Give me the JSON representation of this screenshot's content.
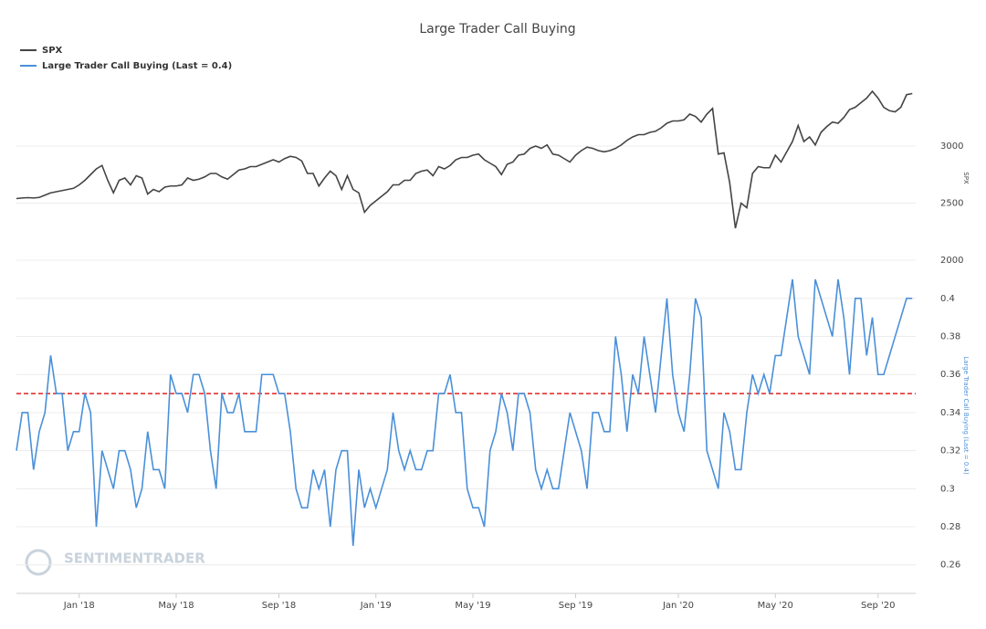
{
  "chart_data": {
    "type": "line",
    "title": "Large Trader Call Buying",
    "categories": [
      null,
      null,
      null,
      null,
      null,
      null,
      null,
      null,
      null,
      null,
      null,
      "Jan '18",
      null,
      null,
      null,
      null,
      null,
      null,
      null,
      null,
      null,
      null,
      null,
      null,
      null,
      null,
      null,
      null,
      "May '18",
      null,
      null,
      null,
      null,
      null,
      null,
      null,
      null,
      null,
      null,
      null,
      null,
      null,
      null,
      null,
      null,
      null,
      "Sep '18",
      null,
      null,
      null,
      null,
      null,
      null,
      null,
      null,
      null,
      null,
      null,
      null,
      null,
      null,
      null,
      null,
      "Jan '19",
      null,
      null,
      null,
      null,
      null,
      null,
      null,
      null,
      null,
      null,
      null,
      null,
      null,
      null,
      null,
      null,
      "May '19",
      null,
      null,
      null,
      null,
      null,
      null,
      null,
      null,
      null,
      null,
      null,
      null,
      null,
      null,
      null,
      null,
      null,
      "Sep '19",
      null,
      null,
      null,
      null,
      null,
      null,
      null,
      null,
      null,
      null,
      null,
      null,
      null,
      null,
      null,
      null,
      null,
      "Jan '20",
      null,
      null,
      null,
      null,
      null,
      null,
      null,
      null,
      null,
      null,
      null,
      null,
      null,
      null,
      null,
      null,
      "May '20",
      null,
      null,
      null,
      null,
      null,
      null,
      null,
      null,
      null,
      null,
      null,
      null,
      null,
      null,
      null,
      null,
      null,
      "Sep '20",
      null,
      null,
      null,
      null,
      null,
      null
    ],
    "series": [
      {
        "name": "SPX",
        "color": "#444444",
        "values": [
          2540,
          2545,
          2548,
          2545,
          2550,
          2570,
          2590,
          2600,
          2610,
          2620,
          2630,
          2660,
          2700,
          2750,
          2800,
          2830,
          2700,
          2590,
          2700,
          2720,
          2660,
          2740,
          2720,
          2580,
          2620,
          2600,
          2640,
          2650,
          2650,
          2660,
          2720,
          2700,
          2710,
          2730,
          2760,
          2760,
          2730,
          2710,
          2750,
          2790,
          2800,
          2820,
          2820,
          2840,
          2860,
          2880,
          2860,
          2890,
          2910,
          2900,
          2870,
          2760,
          2760,
          2650,
          2720,
          2780,
          2740,
          2620,
          2740,
          2620,
          2590,
          2420,
          2480,
          2520,
          2560,
          2600,
          2660,
          2660,
          2700,
          2700,
          2760,
          2780,
          2790,
          2740,
          2820,
          2800,
          2830,
          2880,
          2900,
          2900,
          2920,
          2930,
          2880,
          2850,
          2820,
          2750,
          2840,
          2860,
          2920,
          2930,
          2980,
          3000,
          2980,
          3010,
          2930,
          2920,
          2890,
          2860,
          2920,
          2960,
          2990,
          2980,
          2960,
          2950,
          2960,
          2980,
          3010,
          3050,
          3080,
          3100,
          3100,
          3120,
          3130,
          3160,
          3200,
          3220,
          3220,
          3230,
          3280,
          3260,
          3210,
          3280,
          3330,
          2930,
          2940,
          2680,
          2280,
          2500,
          2460,
          2760,
          2820,
          2810,
          2810,
          2920,
          2860,
          2950,
          3040,
          3180,
          3040,
          3080,
          3010,
          3120,
          3170,
          3210,
          3200,
          3250,
          3320,
          3340,
          3380,
          3420,
          3480,
          3420,
          3340,
          3310,
          3300,
          3340,
          3450,
          3460
        ]
      },
      {
        "name": "Large Trader Call Buying (Last = 0.4)",
        "color": "#4a90d9",
        "axis": "y2",
        "values": [
          0.32,
          0.34,
          0.34,
          0.31,
          0.33,
          0.34,
          0.37,
          0.35,
          0.35,
          0.32,
          0.33,
          0.33,
          0.35,
          0.34,
          0.28,
          0.32,
          0.31,
          0.3,
          0.32,
          0.32,
          0.31,
          0.29,
          0.3,
          0.33,
          0.31,
          0.31,
          0.3,
          0.36,
          0.35,
          0.35,
          0.34,
          0.36,
          0.36,
          0.35,
          0.32,
          0.3,
          0.35,
          0.34,
          0.34,
          0.35,
          0.33,
          0.33,
          0.33,
          0.36,
          0.36,
          0.36,
          0.35,
          0.35,
          0.33,
          0.3,
          0.29,
          0.29,
          0.31,
          0.3,
          0.31,
          0.28,
          0.31,
          0.32,
          0.32,
          0.27,
          0.31,
          0.29,
          0.3,
          0.29,
          0.3,
          0.31,
          0.34,
          0.32,
          0.31,
          0.32,
          0.31,
          0.31,
          0.32,
          0.32,
          0.35,
          0.35,
          0.36,
          0.34,
          0.34,
          0.3,
          0.29,
          0.29,
          0.28,
          0.32,
          0.33,
          0.35,
          0.34,
          0.32,
          0.35,
          0.35,
          0.34,
          0.31,
          0.3,
          0.31,
          0.3,
          0.3,
          0.32,
          0.34,
          0.33,
          0.32,
          0.3,
          0.34,
          0.34,
          0.33,
          0.33,
          0.38,
          0.36,
          0.33,
          0.36,
          0.35,
          0.38,
          0.36,
          0.34,
          0.37,
          0.4,
          0.36,
          0.34,
          0.33,
          0.36,
          0.4,
          0.39,
          0.32,
          0.31,
          0.3,
          0.34,
          0.33,
          0.31,
          0.31,
          0.34,
          0.36,
          0.35,
          0.36,
          0.35,
          0.37,
          0.37,
          0.39,
          0.41,
          0.38,
          0.37,
          0.36,
          0.41,
          0.4,
          0.39,
          0.38,
          0.41,
          0.39,
          0.36,
          0.4,
          0.4,
          0.37,
          0.39,
          0.36,
          0.36,
          0.37,
          0.38,
          0.39,
          0.4,
          0.4
        ]
      }
    ],
    "ylabel": "SPX",
    "ylim": [
      2000,
      3600
    ],
    "yticks": [
      2000,
      2500,
      3000
    ],
    "y2label": "Large Trader Call Buying (Last = 0.4)",
    "y2lim": [
      0.245,
      0.41
    ],
    "y2ticks": [
      0.26,
      0.28,
      0.3,
      0.32,
      0.34,
      0.36,
      0.38,
      0.4
    ],
    "reference_line": {
      "value": 0.35,
      "color": "#e02020",
      "axis": "y2"
    },
    "grid": true,
    "legend": "top-left",
    "watermark": "SENTIMENTRADER"
  }
}
